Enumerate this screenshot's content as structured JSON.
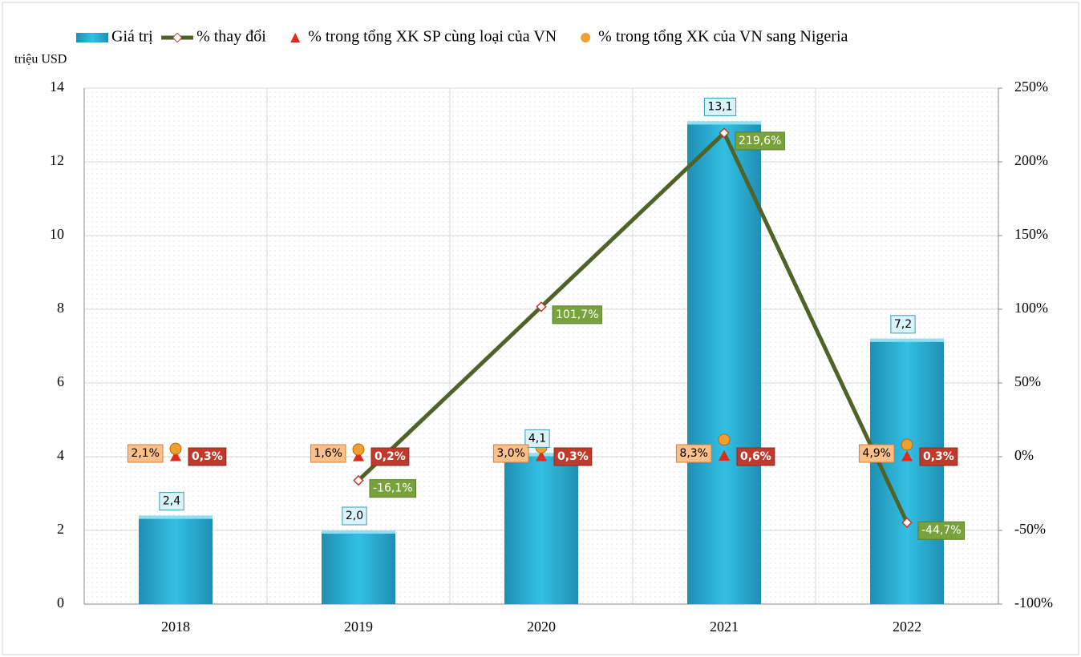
{
  "chart_data": {
    "type": "bar",
    "y_axis_label": "triệu USD",
    "categories": [
      "2018",
      "2019",
      "2020",
      "2021",
      "2022"
    ],
    "ylim": [
      0,
      14
    ],
    "yticks": [
      0,
      2,
      4,
      6,
      8,
      10,
      12,
      14
    ],
    "y2lim": [
      -100,
      250
    ],
    "y2ticks": [
      {
        "value": -100,
        "label": "-100%"
      },
      {
        "value": -50,
        "label": "-50%"
      },
      {
        "value": 0,
        "label": "0%"
      },
      {
        "value": 50,
        "label": "50%"
      },
      {
        "value": 100,
        "label": "100%"
      },
      {
        "value": 150,
        "label": "150%"
      },
      {
        "value": 200,
        "label": "200%"
      },
      {
        "value": 250,
        "label": "250%"
      }
    ],
    "grid": true,
    "legend": "top",
    "series": [
      {
        "name": "Giá trị",
        "type": "bar",
        "color": "#2bb3d9",
        "values": [
          2.4,
          2.0,
          4.1,
          13.1,
          7.2
        ],
        "value_labels": [
          "2,4",
          "2,0",
          "4,1",
          "13,1",
          "7,2"
        ]
      },
      {
        "name": "% thay đổi",
        "type": "line",
        "axis": "y2",
        "color": "#4f6228",
        "values": [
          null,
          -16.1,
          101.7,
          219.6,
          -44.7
        ],
        "value_labels": [
          null,
          "-16,1%",
          "101,7%",
          "219,6%",
          "-44,7%"
        ]
      },
      {
        "name": "% trong tổng XK SP cùng loại của VN",
        "type": "scatter",
        "marker": "triangle",
        "axis": "y2",
        "color": "#e02a1a",
        "values": [
          0.3,
          0.2,
          0.3,
          0.6,
          0.3
        ],
        "value_labels": [
          "0,3%",
          "0,2%",
          "0,3%",
          "0,6%",
          "0,3%"
        ]
      },
      {
        "name": "% trong tổng XK của VN sang Nigeria",
        "type": "scatter",
        "marker": "circle",
        "axis": "y2",
        "color": "#f0a030",
        "values": [
          2.1,
          1.6,
          3.0,
          8.3,
          4.9
        ],
        "value_labels": [
          "2,1%",
          "1,6%",
          "3,0%",
          "8,3%",
          "4,9%"
        ]
      }
    ]
  }
}
